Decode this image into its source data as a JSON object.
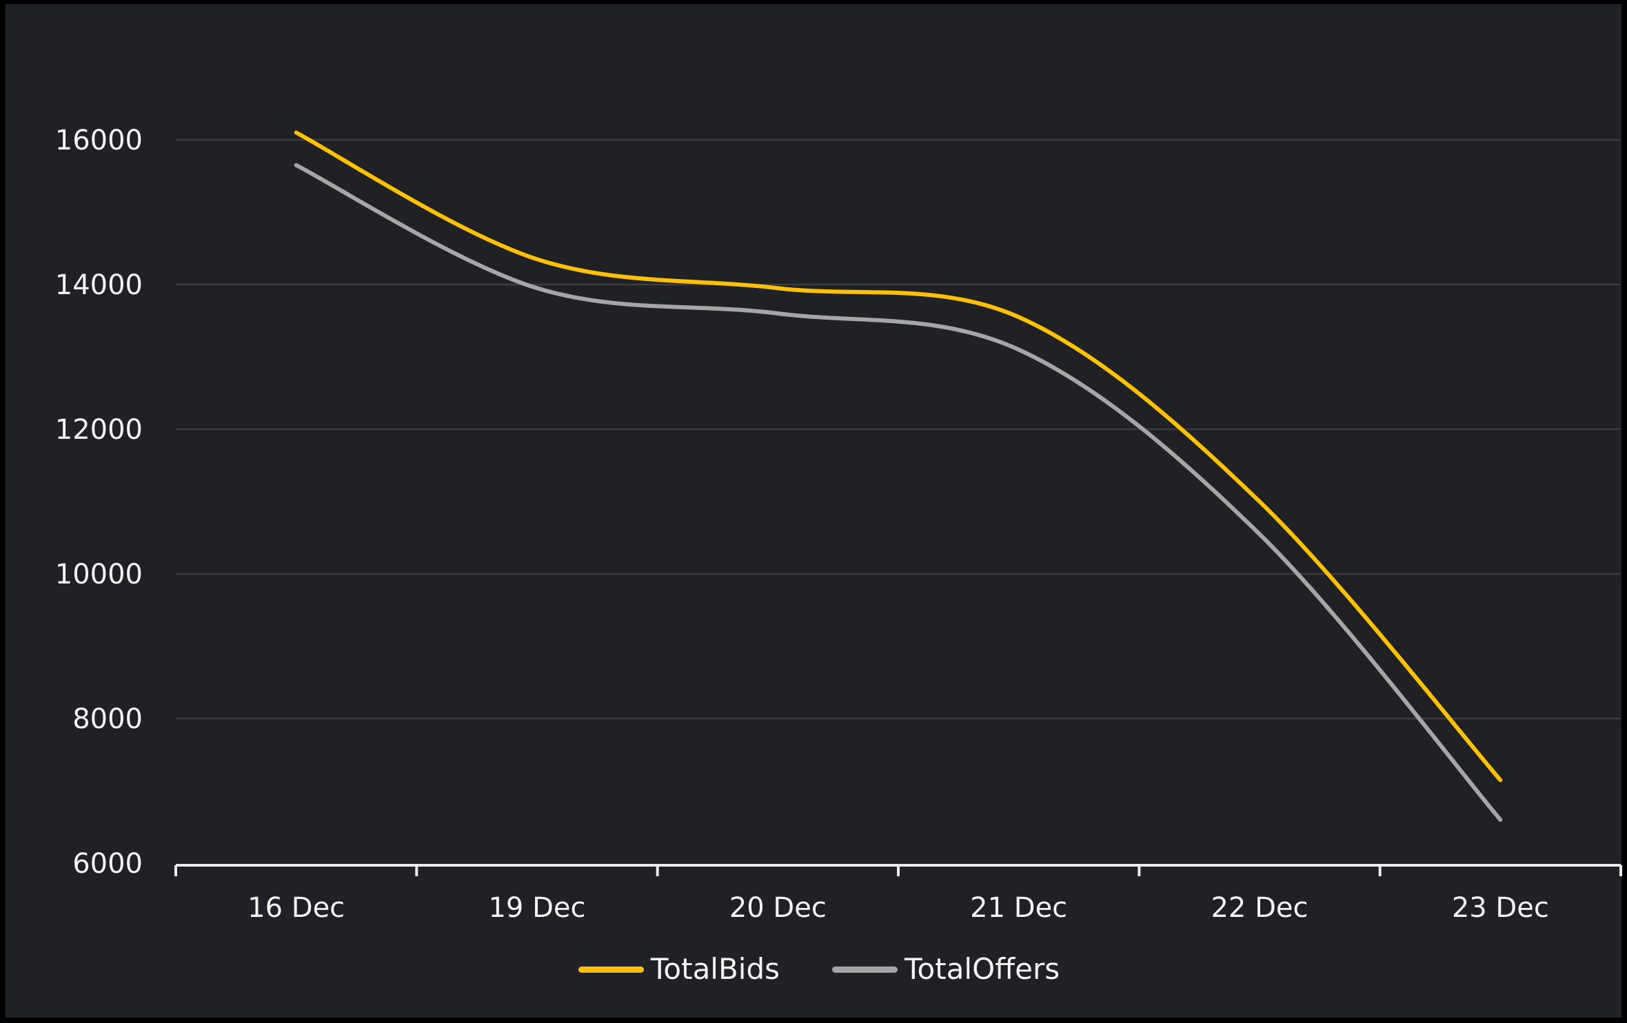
{
  "window": {
    "page_background": "#000000",
    "canvas_background": "#202124"
  },
  "chart_data": {
    "type": "line",
    "title": "",
    "categories": [
      "16 Dec",
      "19 Dec",
      "20 Dec",
      "21 Dec",
      "22 Dec",
      "23 Dec"
    ],
    "series": [
      {
        "name": "TotalBids",
        "color": "#FFC107",
        "values": [
          16100,
          14350,
          13950,
          13550,
          11000,
          7150
        ]
      },
      {
        "name": "TotalOffers",
        "color": "#A6A6A6",
        "values": [
          15650,
          13950,
          13600,
          13100,
          10550,
          6600
        ]
      }
    ],
    "ylim": [
      6000,
      16000
    ],
    "yticks": [
      6000,
      8000,
      10000,
      12000,
      14000,
      16000
    ],
    "xlabel": "",
    "ylabel": "",
    "grid": "horizontal-only",
    "smooth": true,
    "legend_position": "bottom-center",
    "styles": {
      "grid_color": "#3D3D40",
      "axis_color": "#ECECEC",
      "tick_label_color": "#F4F4F4",
      "axis_label_font_size": 40,
      "line_width": 6
    }
  }
}
